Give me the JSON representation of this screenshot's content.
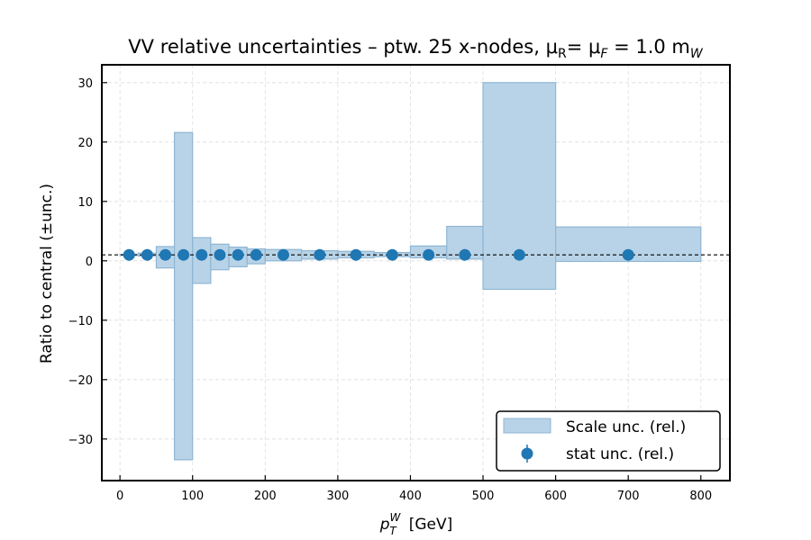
{
  "chart_data": {
    "type": "bar",
    "title": {
      "main": "VV relative uncertainties  –  ptw. 25 x-nodes, μ",
      "sub_R": "R",
      "mid": "= μ",
      "sub_F": "F",
      "end": " = 1.0 m",
      "sub_W": "W"
    },
    "xlabel": {
      "base": "p",
      "sup": "W",
      "sub": "T",
      "unit": "[GeV]"
    },
    "ylabel": "Ratio to central (±unc.)",
    "xlim": [
      -25,
      840
    ],
    "ylim": [
      -37,
      33
    ],
    "xticks": [
      "0",
      "100",
      "200",
      "300",
      "400",
      "500",
      "600",
      "700",
      "800"
    ],
    "yticks": [
      "30",
      "20",
      "10",
      "0",
      "−10",
      "−20",
      "−30"
    ],
    "grid": true,
    "reference_line": 1.0,
    "legend": {
      "position": "lower-right",
      "scale": "Scale unc. (rel.)",
      "stat": "stat unc. (rel.)"
    },
    "colors": {
      "band_fill": "#b8d3e7",
      "band_edge": "#8fb6d4",
      "point": "#1f77b4"
    },
    "scale_band": [
      {
        "x0": 0,
        "x1": 25,
        "low": 0.9,
        "high": 1.1
      },
      {
        "x0": 25,
        "x1": 50,
        "low": 0.8,
        "high": 1.3
      },
      {
        "x0": 50,
        "x1": 75,
        "low": -1.2,
        "high": 2.4
      },
      {
        "x0": 75,
        "x1": 100,
        "low": -33.5,
        "high": 21.6
      },
      {
        "x0": 100,
        "x1": 125,
        "low": -3.8,
        "high": 3.9
      },
      {
        "x0": 125,
        "x1": 150,
        "low": -1.5,
        "high": 2.8
      },
      {
        "x0": 150,
        "x1": 175,
        "low": -1.0,
        "high": 2.3
      },
      {
        "x0": 175,
        "x1": 200,
        "low": -0.5,
        "high": 2.0
      },
      {
        "x0": 200,
        "x1": 250,
        "low": 0.0,
        "high": 1.9
      },
      {
        "x0": 250,
        "x1": 300,
        "low": 0.3,
        "high": 1.7
      },
      {
        "x0": 300,
        "x1": 350,
        "low": 0.5,
        "high": 1.6
      },
      {
        "x0": 350,
        "x1": 400,
        "low": 0.7,
        "high": 1.4
      },
      {
        "x0": 400,
        "x1": 450,
        "low": 0.5,
        "high": 2.5
      },
      {
        "x0": 450,
        "x1": 500,
        "low": 0.3,
        "high": 5.8
      },
      {
        "x0": 500,
        "x1": 600,
        "low": -4.8,
        "high": 30.0
      },
      {
        "x0": 600,
        "x1": 800,
        "low": -0.1,
        "high": 5.7
      }
    ],
    "stat_points": {
      "x": [
        12.5,
        37.5,
        62.5,
        87.5,
        112.5,
        137.5,
        162.5,
        187.5,
        225,
        275,
        325,
        375,
        425,
        475,
        550,
        700
      ],
      "y": [
        1,
        1,
        1,
        1,
        1,
        1,
        1,
        1,
        1,
        1,
        1,
        1,
        1,
        1,
        1,
        1
      ]
    }
  }
}
